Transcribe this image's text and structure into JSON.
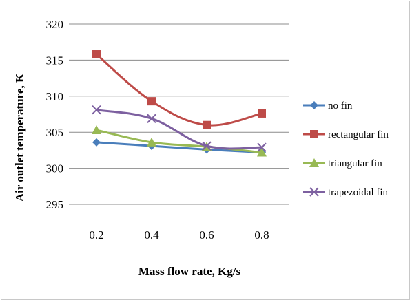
{
  "chart_data": {
    "type": "line",
    "title": "",
    "xlabel": "Mass flow rate, Kg/s",
    "ylabel": "Air outlet temperature, K",
    "categories": [
      "0.2",
      "0.4",
      "0.6",
      "0.8"
    ],
    "y_ticks": [
      "295",
      "300",
      "305",
      "310",
      "315",
      "320"
    ],
    "ylim": [
      295,
      320
    ],
    "grid": "horizontal",
    "legend_position": "right",
    "series": [
      {
        "name": "no fin",
        "values": [
          303.6,
          303.1,
          302.6,
          302.2
        ],
        "color": "#4a7ebb",
        "marker": "diamond"
      },
      {
        "name": "rectangular fin",
        "values": [
          315.8,
          309.3,
          306.0,
          307.6
        ],
        "color": "#be4b48",
        "marker": "square"
      },
      {
        "name": "triangular fin",
        "values": [
          305.3,
          303.6,
          303.0,
          302.2
        ],
        "color": "#98b954",
        "marker": "triangle"
      },
      {
        "name": "trapezoidal fin",
        "values": [
          308.1,
          306.9,
          303.1,
          302.9
        ],
        "color": "#7d60a0",
        "marker": "x"
      }
    ]
  }
}
